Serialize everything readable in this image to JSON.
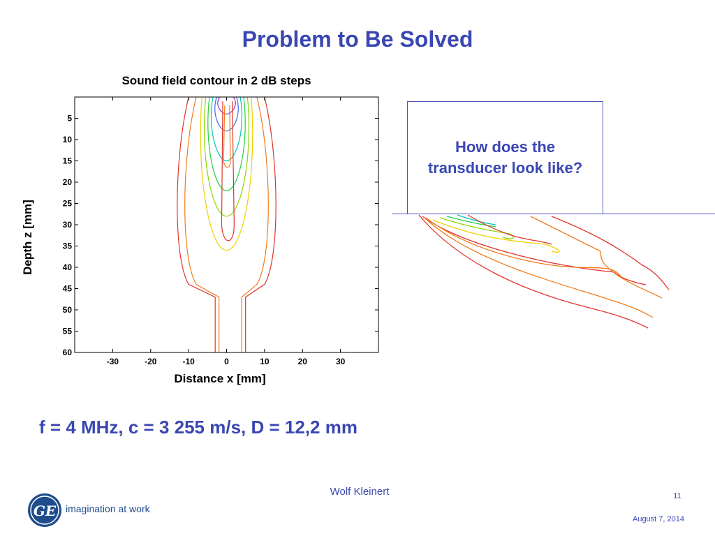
{
  "slide": {
    "title": "Problem to Be Solved",
    "question": "How does the transducer look like?",
    "params": "f = 4 MHz, c = 3 255 m/s, D = 12,2 mm",
    "author": "Wolf Kleinert",
    "page_number": "11",
    "date": "August 7, 2014",
    "logo_text": "GE",
    "tagline": "imagination at work"
  },
  "chart_data": {
    "type": "contour",
    "title": "Sound field contour in 2 dB steps",
    "xlabel": "Distance x [mm]",
    "ylabel": "Depth z [mm]",
    "xlim": [
      -40,
      40
    ],
    "ylim": [
      60,
      0
    ],
    "x_ticks": [
      -30,
      -20,
      -10,
      0,
      10,
      20,
      30
    ],
    "y_ticks": [
      5,
      10,
      15,
      20,
      25,
      30,
      35,
      40,
      45,
      50,
      55,
      60
    ],
    "level_colors": [
      "#e0342c",
      "#f07c1c",
      "#f0d000",
      "#8ad800",
      "#20d040",
      "#00c8b8",
      "#3a6cf0",
      "#9a30d8"
    ]
  }
}
